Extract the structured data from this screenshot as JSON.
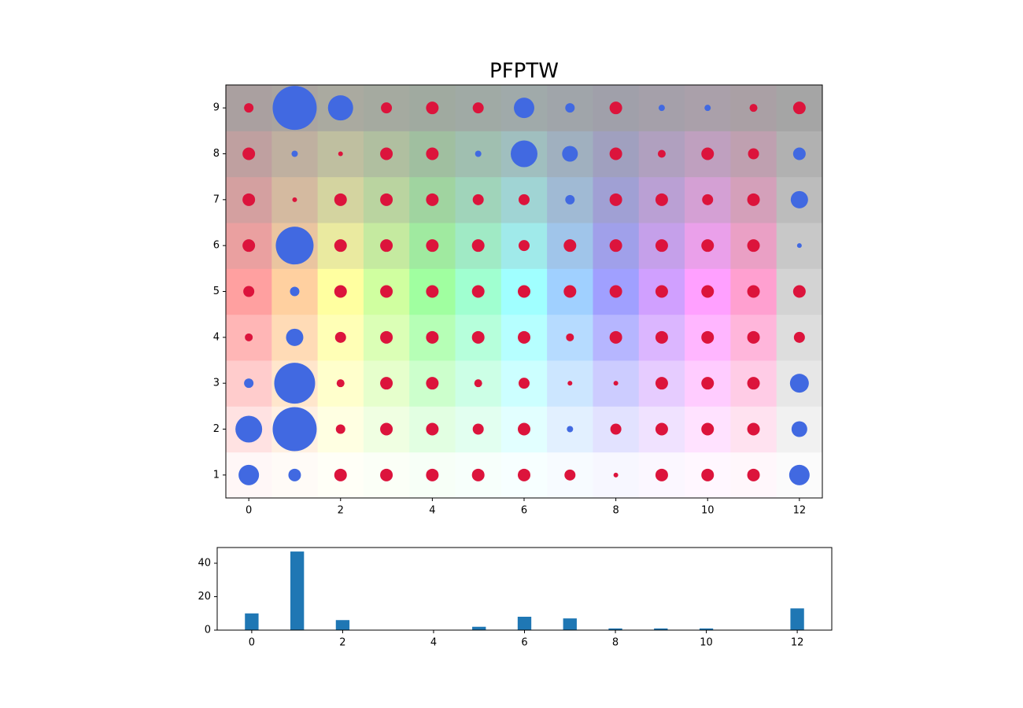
{
  "chart_data": [
    {
      "type": "scatter",
      "title": "PFPTW",
      "xlim": [
        -0.5,
        12.5
      ],
      "ylim": [
        0.5,
        9.5
      ],
      "xticks": [
        0,
        2,
        4,
        6,
        8,
        10,
        12
      ],
      "yticks": [
        1,
        2,
        3,
        4,
        5,
        6,
        7,
        8,
        9
      ],
      "cell_colors": [
        "#ffa0a0",
        "#ffd0a0",
        "#ffffa0",
        "#d0ffa0",
        "#a0ffa0",
        "#a0ffd0",
        "#a0ffff",
        "#a0d0ff",
        "#a0a0ff",
        "#d0a0ff",
        "#ffa0ff",
        "#ffa0d0",
        "#d3d3d3"
      ],
      "series": [
        {
          "color": "#dc143c",
          "points": [
            [
              0,
              9,
              6
            ],
            [
              3,
              9,
              7
            ],
            [
              4,
              9,
              8
            ],
            [
              5,
              9,
              7
            ],
            [
              8,
              9,
              8
            ],
            [
              11,
              9,
              5
            ],
            [
              12,
              9,
              8
            ],
            [
              0,
              8,
              8
            ],
            [
              2,
              8,
              3
            ],
            [
              3,
              8,
              8
            ],
            [
              4,
              8,
              8
            ],
            [
              8,
              8,
              8
            ],
            [
              9,
              8,
              5
            ],
            [
              10,
              8,
              8
            ],
            [
              11,
              8,
              7
            ],
            [
              0,
              7,
              8
            ],
            [
              1,
              7,
              3
            ],
            [
              2,
              7,
              8
            ],
            [
              3,
              7,
              8
            ],
            [
              4,
              7,
              8
            ],
            [
              5,
              7,
              7
            ],
            [
              6,
              7,
              7
            ],
            [
              8,
              7,
              8
            ],
            [
              9,
              7,
              8
            ],
            [
              10,
              7,
              7
            ],
            [
              11,
              7,
              8
            ],
            [
              0,
              6,
              8
            ],
            [
              2,
              6,
              8
            ],
            [
              3,
              6,
              8
            ],
            [
              4,
              6,
              8
            ],
            [
              5,
              6,
              8
            ],
            [
              6,
              6,
              7
            ],
            [
              7,
              6,
              8
            ],
            [
              8,
              6,
              8
            ],
            [
              9,
              6,
              8
            ],
            [
              10,
              6,
              8
            ],
            [
              11,
              6,
              8
            ],
            [
              0,
              5,
              7
            ],
            [
              2,
              5,
              8
            ],
            [
              3,
              5,
              8
            ],
            [
              4,
              5,
              8
            ],
            [
              5,
              5,
              8
            ],
            [
              6,
              5,
              8
            ],
            [
              7,
              5,
              8
            ],
            [
              8,
              5,
              8
            ],
            [
              9,
              5,
              8
            ],
            [
              10,
              5,
              8
            ],
            [
              11,
              5,
              8
            ],
            [
              12,
              5,
              8
            ],
            [
              0,
              4,
              5
            ],
            [
              2,
              4,
              7
            ],
            [
              3,
              4,
              8
            ],
            [
              4,
              4,
              8
            ],
            [
              5,
              4,
              8
            ],
            [
              6,
              4,
              8
            ],
            [
              7,
              4,
              5
            ],
            [
              8,
              4,
              8
            ],
            [
              9,
              4,
              8
            ],
            [
              10,
              4,
              8
            ],
            [
              11,
              4,
              8
            ],
            [
              12,
              4,
              7
            ],
            [
              2,
              3,
              5
            ],
            [
              3,
              3,
              8
            ],
            [
              4,
              3,
              8
            ],
            [
              5,
              3,
              5
            ],
            [
              6,
              3,
              7
            ],
            [
              7,
              3,
              3
            ],
            [
              8,
              3,
              3
            ],
            [
              9,
              3,
              8
            ],
            [
              10,
              3,
              8
            ],
            [
              11,
              3,
              8
            ],
            [
              2,
              2,
              6
            ],
            [
              3,
              2,
              8
            ],
            [
              4,
              2,
              8
            ],
            [
              5,
              2,
              7
            ],
            [
              6,
              2,
              8
            ],
            [
              8,
              2,
              7
            ],
            [
              9,
              2,
              8
            ],
            [
              10,
              2,
              8
            ],
            [
              11,
              2,
              8
            ],
            [
              2,
              1,
              8
            ],
            [
              3,
              1,
              8
            ],
            [
              4,
              1,
              8
            ],
            [
              5,
              1,
              8
            ],
            [
              6,
              1,
              8
            ],
            [
              7,
              1,
              7
            ],
            [
              8,
              1,
              3
            ],
            [
              9,
              1,
              8
            ],
            [
              10,
              1,
              8
            ],
            [
              11,
              1,
              8
            ]
          ]
        },
        {
          "color": "#4169e1",
          "points": [
            [
              1,
              9,
              28
            ],
            [
              2,
              9,
              16
            ],
            [
              6,
              9,
              13
            ],
            [
              7,
              9,
              6
            ],
            [
              9,
              9,
              4
            ],
            [
              10,
              9,
              4
            ],
            [
              1,
              8,
              4
            ],
            [
              5,
              8,
              4
            ],
            [
              6,
              8,
              17
            ],
            [
              7,
              8,
              10
            ],
            [
              12,
              8,
              8
            ],
            [
              7,
              7,
              6
            ],
            [
              12,
              7,
              11
            ],
            [
              1,
              6,
              24
            ],
            [
              12,
              6,
              3
            ],
            [
              1,
              5,
              6
            ],
            [
              1,
              4,
              11
            ],
            [
              0,
              3,
              6
            ],
            [
              1,
              3,
              26
            ],
            [
              12,
              3,
              12
            ],
            [
              0,
              2,
              17
            ],
            [
              1,
              2,
              28
            ],
            [
              7,
              2,
              4
            ],
            [
              12,
              2,
              10
            ],
            [
              0,
              1,
              13
            ],
            [
              1,
              1,
              8
            ],
            [
              12,
              1,
              13
            ]
          ]
        }
      ]
    },
    {
      "type": "bar",
      "color": "#1f77b4",
      "x": [
        0,
        1,
        2,
        3,
        4,
        5,
        6,
        7,
        8,
        9,
        10,
        11,
        12
      ],
      "values": [
        10,
        47,
        6,
        0,
        0,
        2,
        8,
        7,
        1,
        1,
        1,
        0,
        13
      ],
      "xlim": [
        -0.76,
        12.76
      ],
      "ylim": [
        0,
        49.4
      ],
      "xticks": [
        0,
        2,
        4,
        6,
        8,
        10,
        12
      ],
      "yticks": [
        0,
        20,
        40
      ]
    }
  ]
}
